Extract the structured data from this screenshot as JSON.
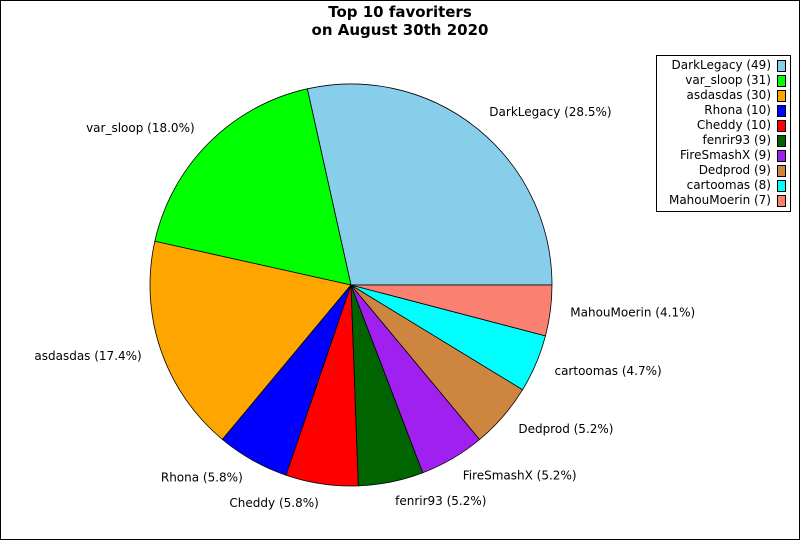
{
  "chart_data": {
    "type": "pie",
    "title": "Top 10 favoriters\non August 30th 2020",
    "slices": [
      {
        "name": "DarkLegacy",
        "value": 49,
        "percent_label": "DarkLegacy (28.5%)",
        "legend_label": "DarkLegacy (49)",
        "color": "#87ceeb"
      },
      {
        "name": "var_sloop",
        "value": 31,
        "percent_label": "var_sloop (18.0%)",
        "legend_label": "var_sloop (31)",
        "color": "#00ff00"
      },
      {
        "name": "asdasdas",
        "value": 30,
        "percent_label": "asdasdas (17.4%)",
        "legend_label": "asdasdas (30)",
        "color": "#ffa500"
      },
      {
        "name": "Rhona",
        "value": 10,
        "percent_label": "Rhona (5.8%)",
        "legend_label": "Rhona (10)",
        "color": "#0000ff"
      },
      {
        "name": "Cheddy",
        "value": 10,
        "percent_label": "Cheddy (5.8%)",
        "legend_label": "Cheddy (10)",
        "color": "#ff0000"
      },
      {
        "name": "fenrir93",
        "value": 9,
        "percent_label": "fenrir93 (5.2%)",
        "legend_label": "fenrir93 (9)",
        "color": "#006400"
      },
      {
        "name": "FireSmashX",
        "value": 9,
        "percent_label": "FireSmashX (5.2%)",
        "legend_label": "FireSmashX (9)",
        "color": "#a020f0"
      },
      {
        "name": "Dedprod",
        "value": 9,
        "percent_label": "Dedprod (5.2%)",
        "legend_label": "Dedprod (9)",
        "color": "#cd853f"
      },
      {
        "name": "cartoomas",
        "value": 8,
        "percent_label": "cartoomas (4.7%)",
        "legend_label": "cartoomas (8)",
        "color": "#00ffff"
      },
      {
        "name": "MahouMoerin",
        "value": 7,
        "percent_label": "MahouMoerin (4.1%)",
        "legend_label": "MahouMoerin (7)",
        "color": "#fa8072"
      }
    ],
    "start_angle_deg": 0,
    "direction": "counterclockwise",
    "legend_position": "top-right"
  }
}
